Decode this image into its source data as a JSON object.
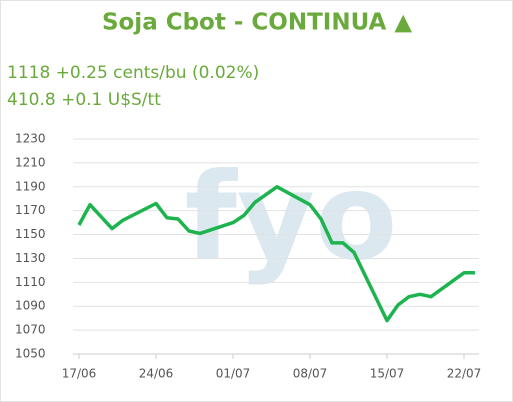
{
  "chart_data": {
    "type": "line",
    "title": "Soja Cbot - CONTINUA ▲",
    "subtitle": [
      "1118 +0.25 cents/bu (0.02%)",
      "410.8 +0.1 U$S/tt"
    ],
    "watermark": "fyo",
    "x": [
      "17/06",
      "18/06",
      "20/06",
      "21/06",
      "24/06",
      "25/06",
      "26/06",
      "27/06",
      "28/06",
      "01/07",
      "02/07",
      "03/07",
      "05/07",
      "08/07",
      "09/07",
      "10/07",
      "11/07",
      "12/07",
      "15/07",
      "16/07",
      "17/07",
      "18/07",
      "19/07",
      "22/07",
      "23/07"
    ],
    "series": [
      {
        "name": "Soja Cbot",
        "color": "#1db34e",
        "values": [
          1158,
          1175,
          1155,
          1162,
          1176,
          1164,
          1163,
          1153,
          1151,
          1160,
          1166,
          1177,
          1190,
          1175,
          1163,
          1143,
          1143,
          1135,
          1078,
          1091,
          1098,
          1100,
          1098,
          1118,
          1118
        ]
      }
    ],
    "xlim": [
      "17/06",
      "23/07"
    ],
    "xticks": [
      "17/06",
      "24/06",
      "01/07",
      "08/07",
      "15/07",
      "22/07"
    ],
    "ylim": [
      1050,
      1230
    ],
    "yticks": [
      1050,
      1070,
      1090,
      1110,
      1130,
      1150,
      1170,
      1190,
      1210,
      1230
    ],
    "grid": true
  }
}
